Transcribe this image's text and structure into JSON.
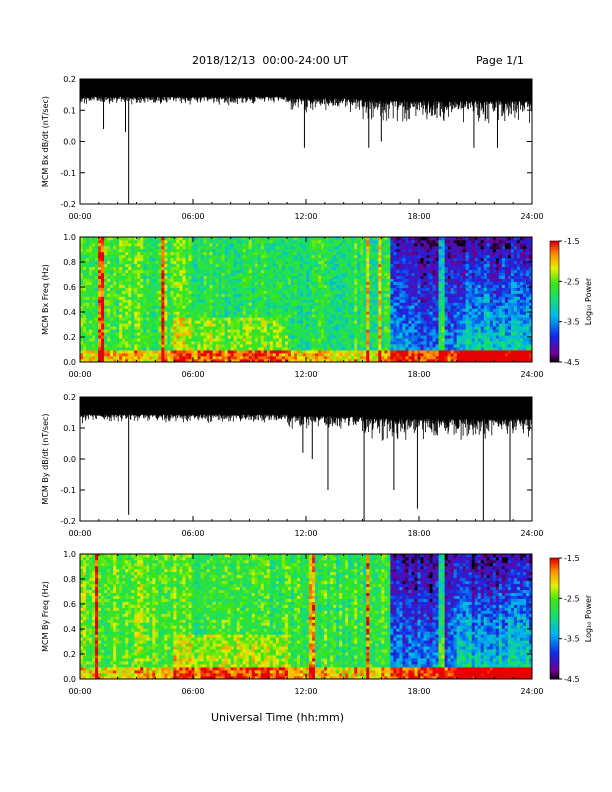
{
  "header": {
    "title": "2018/12/13  00:00-24:00 UT",
    "page": "Page 1/1"
  },
  "footer": {
    "xlabel": "Universal Time (hh:mm)"
  },
  "colorbar": {
    "label_html": "Log₁₀ Power",
    "ticks": [
      "-1.5",
      "-2.5",
      "-3.5",
      "-4.5"
    ],
    "range": [
      -4.5,
      -1.5
    ],
    "colormap": "rainbow (black-purple-blue-cyan-green-yellow-orange-red)"
  },
  "colors": {
    "trace": "#000000",
    "background": "#ffffff"
  },
  "chart_data": [
    {
      "type": "line",
      "ylabel": "MCM Bx dB/dt (nT/sec)",
      "xlim": [
        "00:00",
        "24:00"
      ],
      "ylim": [
        -0.2,
        0.2
      ],
      "xticks": [
        "00:00",
        "06:00",
        "12:00",
        "18:00",
        "24:00"
      ],
      "yticks": [
        "0.2",
        "0.1",
        "0.0",
        "-0.1",
        "-0.2"
      ],
      "series": [
        {
          "envelope_top": 0.2,
          "baseline_typical": 0.15,
          "spikes": [
            {
              "x": "01:15",
              "y": 0.04
            },
            {
              "x": "02:35",
              "y": -0.2
            },
            {
              "x": "02:25",
              "y": 0.03
            },
            {
              "x": "11:55",
              "y": -0.02
            },
            {
              "x": "15:20",
              "y": -0.02
            },
            {
              "x": "16:00",
              "y": 0.0
            },
            {
              "x": "20:55",
              "y": -0.02
            },
            {
              "x": "22:10",
              "y": -0.02
            }
          ]
        }
      ]
    },
    {
      "type": "heatmap",
      "ylabel": "MCM Bx Freq (Hz)",
      "xlim": [
        "00:00",
        "24:00"
      ],
      "ylim": [
        0.0,
        1.0
      ],
      "xticks": [
        "00:00",
        "06:00",
        "12:00",
        "18:00",
        "24:00"
      ],
      "yticks": [
        "1.0",
        "0.8",
        "0.6",
        "0.4",
        "0.2",
        "0.0"
      ],
      "zlim": [
        -4.5,
        -1.5
      ],
      "description_values": {
        "typical_power_0_6h": -2.6,
        "typical_power_6_16h": -2.8,
        "typical_power_17_24h": -3.9,
        "low_freq_band_power": -2.0,
        "bright_vertical_lines_hours": [
          1.1,
          4.4,
          15.3,
          15.9,
          19.2
        ]
      }
    },
    {
      "type": "line",
      "ylabel": "MCM By dB/dt (nT/sec)",
      "xlim": [
        "00:00",
        "24:00"
      ],
      "ylim": [
        -0.2,
        0.2
      ],
      "xticks": [
        "00:00",
        "06:00",
        "12:00",
        "18:00",
        "24:00"
      ],
      "yticks": [
        "0.2",
        "0.1",
        "0.0",
        "-0.1",
        "-0.2"
      ],
      "series": [
        {
          "envelope_top": 0.2,
          "baseline_typical": 0.15,
          "spikes": [
            {
              "x": "02:35",
              "y": -0.18
            },
            {
              "x": "11:50",
              "y": 0.02
            },
            {
              "x": "12:20",
              "y": 0.0
            },
            {
              "x": "15:05",
              "y": -0.2
            },
            {
              "x": "17:55",
              "y": -0.16
            },
            {
              "x": "21:25",
              "y": -0.2
            },
            {
              "x": "22:50",
              "y": -0.2
            },
            {
              "x": "13:10",
              "y": -0.1
            },
            {
              "x": "16:40",
              "y": -0.1
            }
          ]
        }
      ]
    },
    {
      "type": "heatmap",
      "ylabel": "MCM By Freq (Hz)",
      "xlim": [
        "00:00",
        "24:00"
      ],
      "ylim": [
        0.0,
        1.0
      ],
      "xticks": [
        "00:00",
        "06:00",
        "12:00",
        "18:00",
        "24:00"
      ],
      "yticks": [
        "1.0",
        "0.8",
        "0.6",
        "0.4",
        "0.2",
        "0.0"
      ],
      "zlim": [
        -4.5,
        -1.5
      ],
      "description_values": {
        "typical_power_0_6h": -2.5,
        "typical_power_6_16h": -2.7,
        "typical_power_17_24h": -3.9,
        "low_freq_band_power": -2.0,
        "bright_vertical_lines_hours": [
          0.9,
          12.3,
          15.3,
          19.2
        ]
      }
    }
  ]
}
